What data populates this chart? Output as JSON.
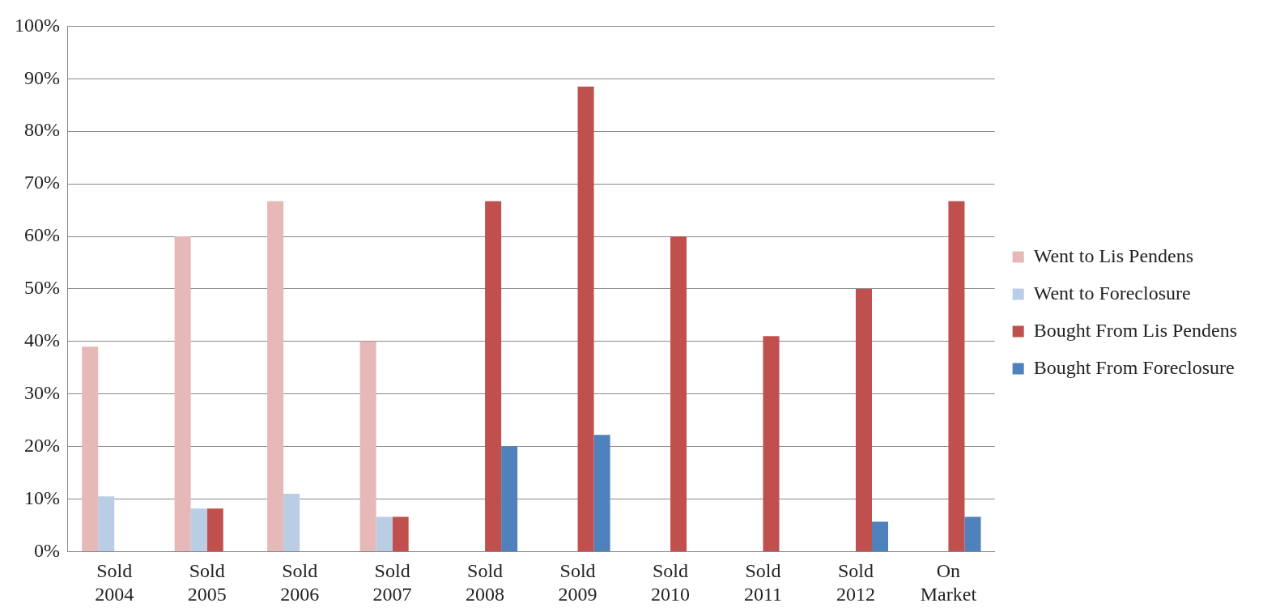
{
  "chart_data": {
    "type": "bar",
    "categories": [
      "Sold 2004",
      "Sold 2005",
      "Sold 2006",
      "Sold 2007",
      "Sold 2008",
      "Sold 2009",
      "Sold 2010",
      "Sold 2011",
      "Sold 2012",
      "On Market"
    ],
    "series": [
      {
        "name": "Went to Lis Pendens",
        "color": "#e6b9b8",
        "values": [
          39,
          60,
          66.7,
          40,
          null,
          null,
          null,
          null,
          null,
          null
        ]
      },
      {
        "name": "Went to Foreclosure",
        "color": "#b9cde5",
        "values": [
          10.5,
          8.2,
          11,
          6.6,
          null,
          null,
          null,
          null,
          null,
          null
        ]
      },
      {
        "name": "Bought From Lis Pendens",
        "color": "#c0504d",
        "values": [
          null,
          8.2,
          null,
          6.6,
          66.7,
          88.5,
          60,
          41,
          50,
          66.7
        ]
      },
      {
        "name": "Bought From Foreclosure",
        "color": "#4f81bd",
        "values": [
          null,
          null,
          null,
          null,
          20,
          22.2,
          null,
          null,
          5.7,
          6.6
        ]
      }
    ],
    "ylim": [
      0,
      100
    ],
    "yticks": [
      {
        "value": 0,
        "label": "0%"
      },
      {
        "value": 10,
        "label": "10%"
      },
      {
        "value": 20,
        "label": "20%"
      },
      {
        "value": 30,
        "label": "30%"
      },
      {
        "value": 40,
        "label": "40%"
      },
      {
        "value": 50,
        "label": "50%"
      },
      {
        "value": 60,
        "label": "60%"
      },
      {
        "value": 70,
        "label": "70%"
      },
      {
        "value": 80,
        "label": "80%"
      },
      {
        "value": 90,
        "label": "90%"
      },
      {
        "value": 100,
        "label": "100%"
      }
    ],
    "grid": "y",
    "legend": "right"
  }
}
